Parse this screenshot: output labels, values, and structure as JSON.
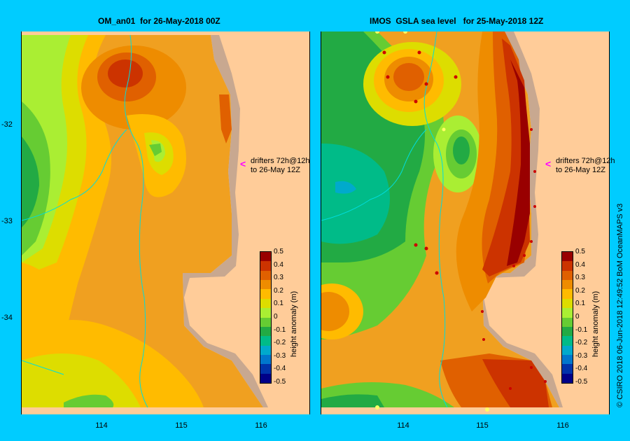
{
  "left_panel": {
    "title": "OM_an01  for 26-May-2018 00Z",
    "drifter_note_line1": "drifters 72h@12h",
    "drifter_note_line2": "to 26-May 12Z"
  },
  "right_panel": {
    "title": "IMOS  GSLA sea level   for 25-May-2018 12Z",
    "drifter_note_line1": "drifters 72h@12h",
    "drifter_note_line2": "to 26-May 12Z"
  },
  "y_ticks": [
    "-32",
    "-33",
    "-34"
  ],
  "x_ticks": [
    "114",
    "115",
    "116"
  ],
  "colorbar": {
    "title": "height anomaly (m)",
    "labels": [
      "0.5",
      "0.4",
      "0.3",
      "0.2",
      "0.1",
      "0",
      "-0.1",
      "-0.2",
      "-0.3",
      "-0.4",
      "-0.5"
    ],
    "colors": [
      "#990000",
      "#cc3300",
      "#e06000",
      "#ee8c00",
      "#ffbb00",
      "#dddd00",
      "#aaee33",
      "#66cc33",
      "#22aa44",
      "#00bb88",
      "#00aacc",
      "#0077cc",
      "#0033aa",
      "#000088"
    ]
  },
  "credit": "© CSIRO 2018   06-Jun-2018 12:49:52 BoM OceanMAPS v3",
  "colors": {
    "background": "#00ccff",
    "land": "#ffcc99",
    "coast": "#c8a890",
    "drifter": "#ff00ff"
  }
}
